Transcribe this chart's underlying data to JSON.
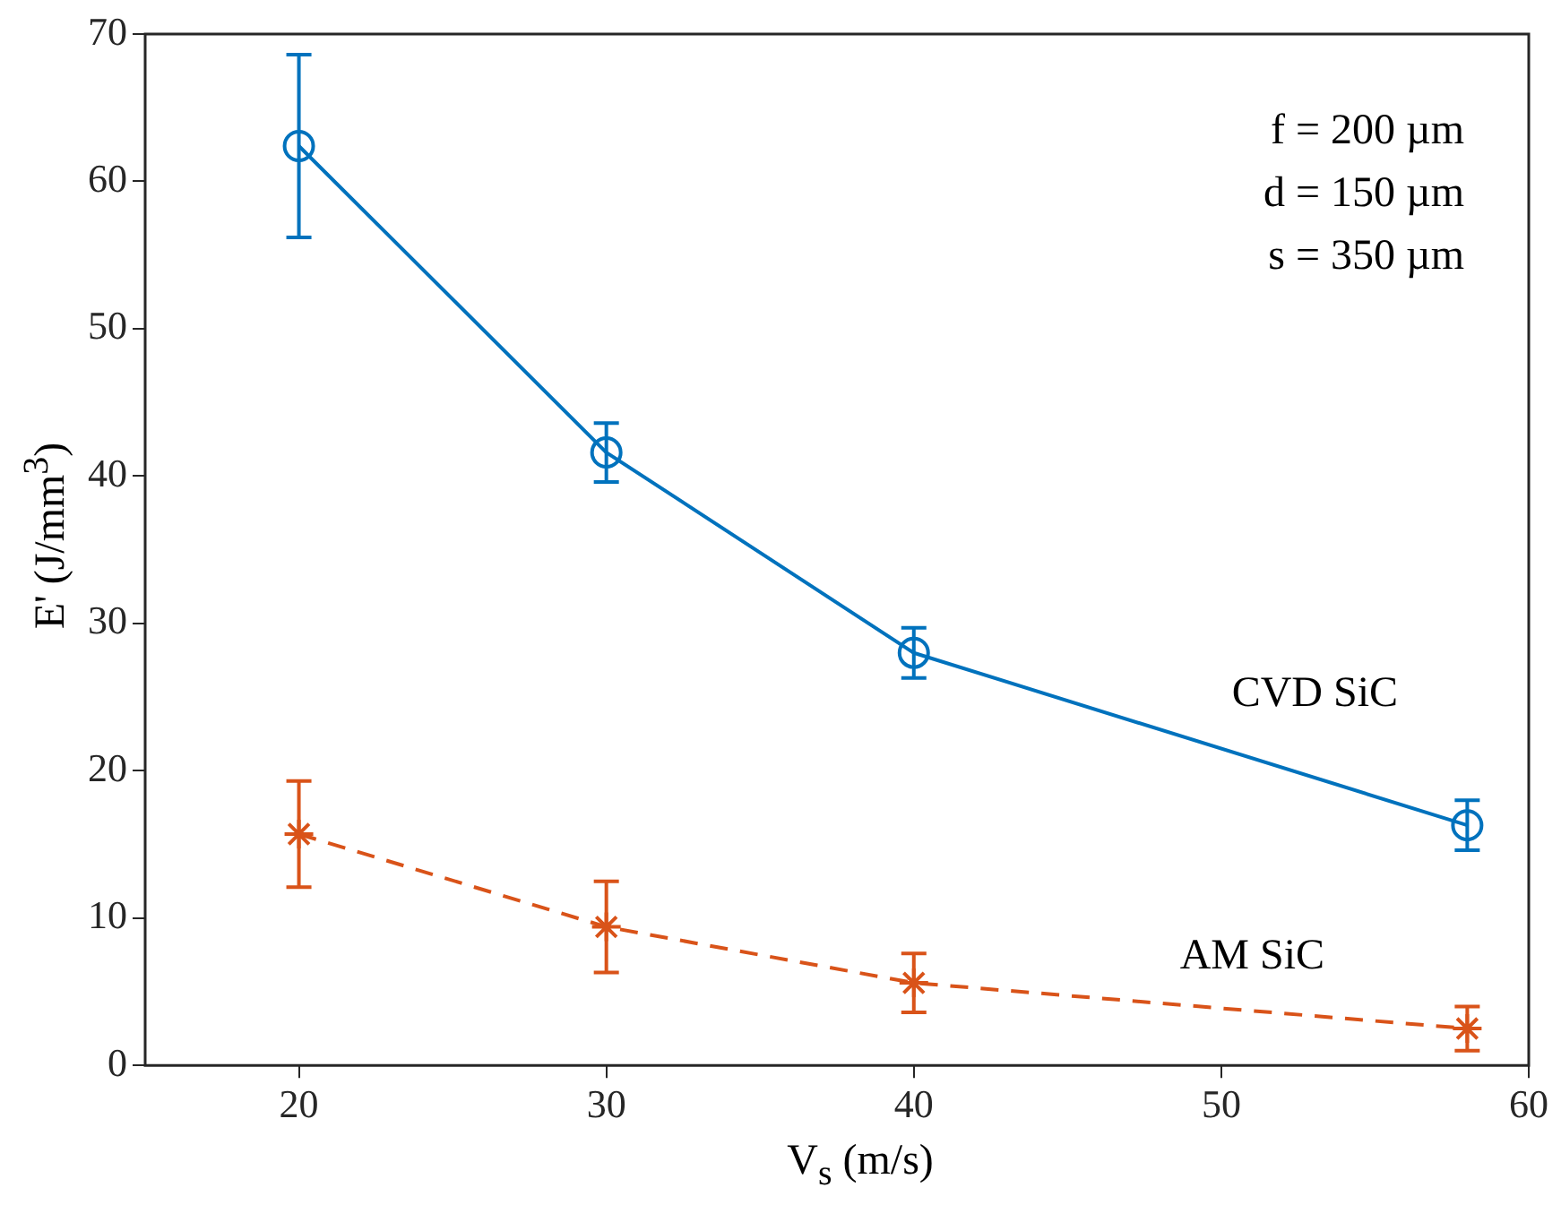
{
  "chart_data": {
    "type": "line",
    "xlabel": "V$_{s}$ (m/s)",
    "ylabel": "E' (J/mm$^{3}$)",
    "x": [
      20,
      30,
      40,
      58
    ],
    "series": [
      {
        "name": "CVD SiC",
        "color": "#0072bd",
        "values": [
          62.4,
          41.6,
          28.0,
          16.3
        ],
        "errors": [
          6.2,
          2.0,
          1.7,
          1.7
        ],
        "marker": "circle",
        "line_style": "solid"
      },
      {
        "name": "AM SiC",
        "color": "#d95319",
        "values": [
          15.7,
          9.4,
          5.6,
          2.5
        ],
        "errors": [
          3.6,
          3.1,
          2.0,
          1.5
        ],
        "marker": "cross",
        "line_style": "dashed"
      }
    ],
    "xlim": [
      15,
      60
    ],
    "xticks": [
      20,
      30,
      40,
      50,
      60
    ],
    "ylim": [
      0,
      70
    ],
    "yticks": [
      0,
      10,
      20,
      30,
      40,
      50,
      60,
      70
    ],
    "grid": false,
    "legend": false,
    "annotations": [
      "f = 200 µm",
      "d = 150 µm",
      "s = 350 µm"
    ]
  }
}
